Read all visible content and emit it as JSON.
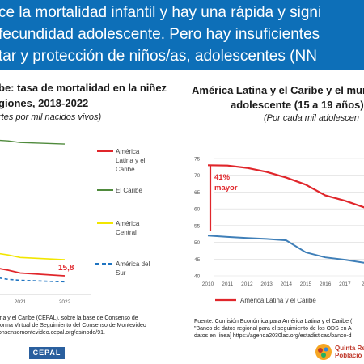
{
  "header": {
    "line1": "ce la mortalidad infantil y hay una rápida y signi",
    "line2": "fecundidad adolescente. Pero hay insuficientes",
    "line3": "tar y protección de niños/as, adolescentes (NN"
  },
  "left_panel": {
    "title_line1": "be: tasa de mortalidad en la niñez",
    "title_line2": "giones, 2018-2022",
    "subtitle": "rtes por mil nacidos vivos)",
    "source_line1": "ina y el Caribe (CEPAL), sobre la base de Consenso de",
    "source_line2": "forma Virtual de Seguimiento del Consenso de Montevideo",
    "source_line3": "onsensomontevideo.cepal.org/es/node/91."
  },
  "right_panel": {
    "title_line1": "América Latina y el Caribe y el mundo",
    "title_line2": "adolescente (15 a 19 años),",
    "subtitle": "(Por cada mil adolescen",
    "source_line1": "Fuente: Comisión Económica para América Latina y el Caribe (",
    "source_line2": "\"Banco de datos regional para el seguimiento de los ODS en A",
    "source_line3": "datos en línea] https://agenda2030lac.org/estadisticas/banco-d"
  },
  "footer": {
    "logo_text": "CEPAL",
    "rep_line1": "Quinta Re",
    "rep_line2": "Població"
  },
  "colors": {
    "header": "#0d6fb8",
    "red": "#e0262b",
    "green": "#4f8a3c",
    "yellow": "#f2e600",
    "blue": "#1f74c1",
    "steel": "#3f7fb8"
  },
  "chart_data": [
    {
      "type": "line",
      "x": [
        2018,
        2019,
        2020,
        2021,
        2022
      ],
      "x_tick_labels": [
        "2021",
        "2022"
      ],
      "series": [
        {
          "name": "América Latina y el Caribe",
          "values": [
            20.2,
            19.1,
            17.6,
            16.7,
            15.8
          ],
          "end_label": "15,8"
        },
        {
          "name": "El Caribe",
          "values": [
            59.5,
            59.0,
            58.5,
            58.0,
            57.5
          ]
        },
        {
          "name": "América Central",
          "values": [
            24.5,
            23.6,
            22.4,
            21.6,
            20.9
          ]
        },
        {
          "name": "América del Sur",
          "values": [
            16.5,
            15.9,
            14.7,
            14.4,
            13.9
          ]
        }
      ],
      "ylim": [
        10,
        65
      ]
    },
    {
      "type": "line",
      "x": [
        2010,
        2011,
        2012,
        2013,
        2014,
        2015,
        2016,
        2017,
        2018,
        2019
      ],
      "x_tick_labels": [
        "2010",
        "2011",
        "2012",
        "2013",
        "2014",
        "2015",
        "2016",
        "2017",
        "20"
      ],
      "y_ticks": [
        40,
        45,
        50,
        55,
        60,
        65,
        70,
        75
      ],
      "ylim": [
        40,
        75
      ],
      "grid": true,
      "annotation": {
        "line1": "41%",
        "line2": "mayor"
      },
      "series": [
        {
          "name": "América Latina y el Caribe",
          "values": [
            73.0,
            72.9,
            72.2,
            71.0,
            69.3,
            67.2,
            64.0,
            62.4,
            60.4,
            58.9
          ]
        },
        {
          "values": [
            52.0,
            51.6,
            51.3,
            51.0,
            50.6,
            47.0,
            45.5,
            44.8,
            43.9,
            43.2
          ]
        }
      ]
    }
  ]
}
